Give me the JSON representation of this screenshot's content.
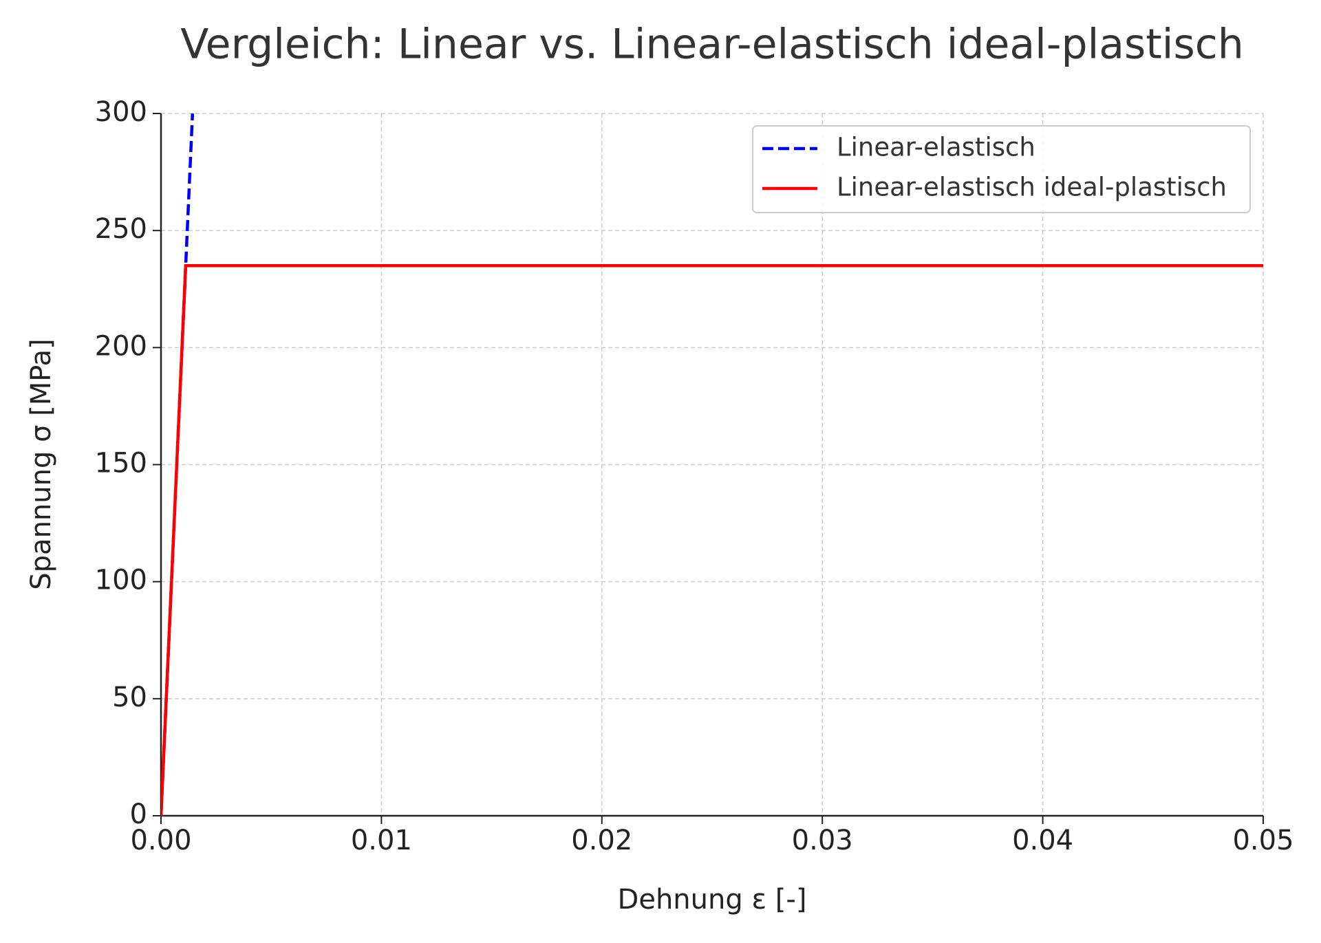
{
  "chart_data": {
    "type": "line",
    "title": "Vergleich: Linear vs. Linear-elastisch ideal-plastisch",
    "xlabel": "Dehnung ε [-]",
    "ylabel": "Spannung σ [MPa]",
    "xlim": [
      0,
      0.05
    ],
    "ylim": [
      0,
      300
    ],
    "xticks": [
      {
        "value": 0,
        "label": "0.00"
      },
      0.01,
      0.02,
      0.03,
      0.04,
      0.05
    ],
    "yticks": [
      0,
      50,
      100,
      150,
      200,
      250,
      300
    ],
    "grid": true,
    "legend": "upper right",
    "series": [
      {
        "name": "Linear-elastisch",
        "color": "#0000ff",
        "dash": "dashed",
        "x": [
          0,
          0.00143
        ],
        "values": [
          0,
          300
        ]
      },
      {
        "name": "Linear-elastisch ideal-plastisch",
        "color": "#ff0000",
        "dash": "solid",
        "x": [
          0,
          0.00112,
          0.05
        ],
        "values": [
          0,
          235,
          235
        ]
      }
    ]
  }
}
